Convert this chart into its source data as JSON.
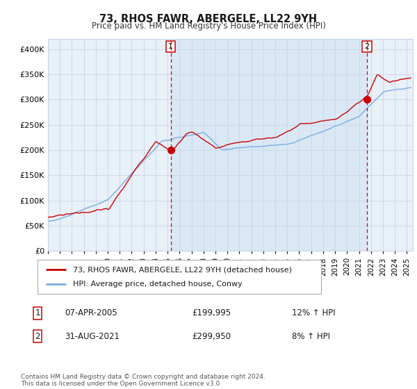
{
  "title": "73, RHOS FAWR, ABERGELE, LL22 9YH",
  "subtitle": "Price paid vs. HM Land Registry's House Price Index (HPI)",
  "legend_line1": "73, RHOS FAWR, ABERGELE, LL22 9YH (detached house)",
  "legend_line2": "HPI: Average price, detached house, Conwy",
  "annotation1_label": "1",
  "annotation1_date": "07-APR-2005",
  "annotation1_price": "£199,995",
  "annotation1_hpi": "12% ↑ HPI",
  "annotation1_year": 2005.27,
  "annotation1_value": 199995,
  "annotation2_label": "2",
  "annotation2_date": "31-AUG-2021",
  "annotation2_price": "£299,950",
  "annotation2_hpi": "8% ↑ HPI",
  "annotation2_year": 2021.67,
  "annotation2_value": 299950,
  "footer": "Contains HM Land Registry data © Crown copyright and database right 2024.\nThis data is licensed under the Open Government Licence v3.0.",
  "red_color": "#cc0000",
  "blue_color": "#7aabe0",
  "bg_color": "#ddeeff",
  "grid_color": "#c8d4e8",
  "plot_bg": "#e8f0f8",
  "ylim_min": 0,
  "ylim_max": 420000,
  "xlim_min": 1995.0,
  "xlim_max": 2025.5
}
